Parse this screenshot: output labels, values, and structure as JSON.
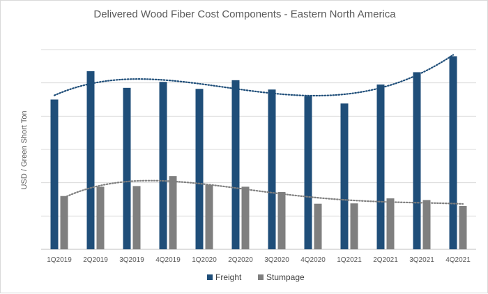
{
  "chart_data": {
    "type": "bar",
    "title": "Delivered Wood Fiber Cost Components - Eastern North America",
    "xlabel": "",
    "ylabel": "USD / Green Short Ton",
    "y_tick_labels_shown": false,
    "ylim": [
      0,
      6
    ],
    "grid": true,
    "legend_position": "bottom",
    "categories": [
      "1Q2019",
      "2Q2019",
      "3Q2019",
      "4Q2019",
      "1Q2020",
      "2Q2020",
      "3Q2020",
      "4Q2020",
      "1Q2021",
      "2Q2021",
      "3Q2021",
      "4Q2021"
    ],
    "series": [
      {
        "name": "Freight",
        "color": "#1f4e79",
        "values": [
          4.5,
          5.35,
          4.85,
          5.03,
          4.82,
          5.08,
          4.8,
          4.6,
          4.38,
          4.95,
          5.32,
          5.8
        ]
      },
      {
        "name": "Stumpage",
        "color": "#7f7f7f",
        "values": [
          1.6,
          1.88,
          1.9,
          2.2,
          1.93,
          1.88,
          1.72,
          1.37,
          1.38,
          1.53,
          1.48,
          1.3
        ]
      }
    ],
    "trendlines": [
      {
        "series": "Freight",
        "type": "polynomial",
        "style": "dotted",
        "color": "#1f4e79"
      },
      {
        "series": "Stumpage",
        "type": "polynomial",
        "style": "dotted",
        "color": "#7f7f7f"
      }
    ]
  }
}
